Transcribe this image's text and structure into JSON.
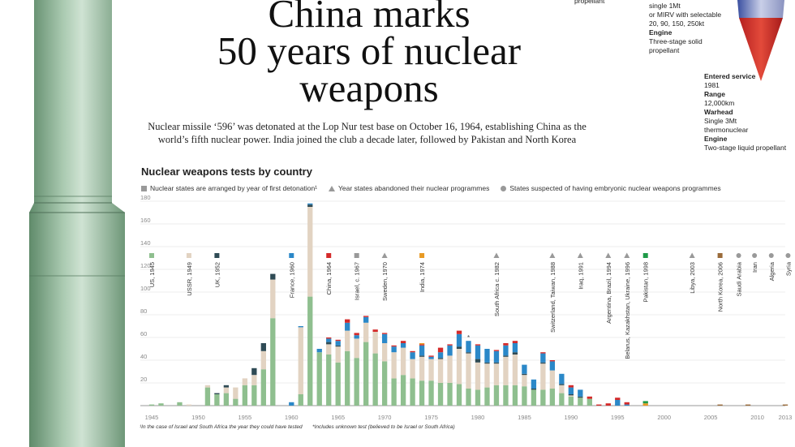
{
  "title_line1": "China marks",
  "title_line2": "50 years of nuclear",
  "title_line3": "weapons",
  "subtitle": "Nuclear missile ‘596’ was detonated at the Lop Nur test base on October 16, 1964, establishing China as the world’s fifth nuclear power. India joined the club a decade later, followed by Pakistan and North Korea",
  "spec_left": {
    "lines": [
      "propellant"
    ]
  },
  "spec_mid": {
    "lines": [
      {
        "t": "single 1Mt",
        "b": false
      },
      {
        "t": "or MIRV with selectable",
        "b": false
      },
      {
        "t": "20, 90, 150, 250kt",
        "b": false
      },
      {
        "t": "Engine",
        "b": true
      },
      {
        "t": "Three-stage solid",
        "b": false
      },
      {
        "t": "propellant",
        "b": false
      }
    ]
  },
  "spec_right": {
    "lines": [
      {
        "t": "Entered service",
        "b": true
      },
      {
        "t": "1981",
        "b": false
      },
      {
        "t": "Range",
        "b": true
      },
      {
        "t": "12,000km",
        "b": false
      },
      {
        "t": "Warhead",
        "b": true
      },
      {
        "t": "Single 3Mt",
        "b": false
      },
      {
        "t": "thermonuclear",
        "b": false
      },
      {
        "t": "Engine",
        "b": true
      },
      {
        "t": "Two-stage liquid propellant",
        "b": false
      }
    ]
  },
  "chart_title": "Nuclear weapons tests by country",
  "legend": {
    "states": "Nuclear states are arranged by year of first detonation¹",
    "abandoned": "Year states abandoned their nuclear programmes",
    "suspected": "States suspected of having embryonic nuclear weapons programmes"
  },
  "footnote1": "¹In the case of Israel and South Africa the year they could have tested",
  "footnote2": "*Includes unknown test (believed to be Israel or South Africa)",
  "colors": {
    "us": "#8fbf8f",
    "ussr": "#e2d3c2",
    "uk": "#2f4b55",
    "france": "#2b88c8",
    "china": "#d42a2a",
    "india": "#e89a24",
    "pakistan": "#1f9a48",
    "nk": "#9a6b3a",
    "marker_gray": "#999999",
    "grid": "#e6e6e6"
  },
  "chart_data": {
    "type": "bar",
    "stacked": true,
    "title": "Nuclear weapons tests by country",
    "ylim": [
      0,
      180
    ],
    "yticks": [
      20,
      40,
      60,
      80,
      100,
      120,
      140,
      160,
      180
    ],
    "xticks": [
      1945,
      1950,
      1955,
      1960,
      1965,
      1970,
      1975,
      1980,
      1985,
      1990,
      1995,
      2000,
      2005,
      2010,
      2013
    ],
    "xrange": [
      1945,
      2013
    ],
    "grid": true,
    "series": [
      {
        "name": "US",
        "color": "#8fbf8f",
        "values": {
          "1945": 1,
          "1946": 2,
          "1948": 3,
          "1951": 16,
          "1952": 10,
          "1953": 11,
          "1954": 6,
          "1955": 18,
          "1956": 18,
          "1957": 32,
          "1958": 77,
          "1961": 10,
          "1962": 96,
          "1963": 47,
          "1964": 45,
          "1965": 38,
          "1966": 48,
          "1967": 42,
          "1968": 56,
          "1969": 46,
          "1970": 39,
          "1971": 24,
          "1972": 27,
          "1973": 24,
          "1974": 22,
          "1975": 22,
          "1976": 20,
          "1977": 20,
          "1978": 19,
          "1979": 15,
          "1980": 14,
          "1981": 16,
          "1982": 18,
          "1983": 18,
          "1984": 18,
          "1985": 17,
          "1986": 14,
          "1987": 14,
          "1988": 15,
          "1989": 11,
          "1990": 8,
          "1991": 7,
          "1992": 6
        }
      },
      {
        "name": "USSR",
        "color": "#e2d3c2",
        "values": {
          "1949": 1,
          "1951": 2,
          "1953": 5,
          "1954": 10,
          "1955": 6,
          "1956": 9,
          "1957": 16,
          "1958": 34,
          "1961": 59,
          "1962": 79,
          "1964": 9,
          "1965": 14,
          "1966": 18,
          "1967": 17,
          "1968": 17,
          "1969": 19,
          "1970": 16,
          "1971": 23,
          "1972": 24,
          "1973": 17,
          "1974": 21,
          "1975": 19,
          "1976": 21,
          "1977": 24,
          "1978": 31,
          "1979": 31,
          "1980": 24,
          "1981": 21,
          "1982": 19,
          "1983": 25,
          "1984": 27,
          "1985": 10,
          "1987": 23,
          "1988": 16,
          "1989": 7,
          "1990": 1
        }
      },
      {
        "name": "UK",
        "color": "#2f4b55",
        "values": {
          "1952": 1,
          "1953": 2,
          "1956": 6,
          "1957": 7,
          "1958": 5,
          "1962": 2,
          "1964": 2,
          "1965": 1,
          "1966": 0,
          "1969": 0,
          "1970": 0,
          "1971": 0,
          "1972": 0,
          "1974": 1,
          "1976": 1,
          "1977": 0,
          "1978": 2,
          "1979": 1,
          "1980": 3,
          "1981": 1,
          "1982": 1,
          "1983": 1,
          "1984": 2,
          "1985": 1,
          "1986": 1,
          "1987": 1,
          "1988": 0,
          "1989": 1,
          "1990": 1,
          "1991": 1
        }
      },
      {
        "name": "France",
        "color": "#2b88c8",
        "values": {
          "1960": 3,
          "1961": 1,
          "1962": 1,
          "1963": 3,
          "1964": 3,
          "1965": 4,
          "1966": 7,
          "1967": 3,
          "1968": 5,
          "1969": 0,
          "1970": 8,
          "1971": 5,
          "1972": 4,
          "1973": 6,
          "1974": 9,
          "1975": 2,
          "1976": 5,
          "1977": 9,
          "1978": 11,
          "1979": 10,
          "1980": 12,
          "1981": 12,
          "1982": 10,
          "1983": 9,
          "1984": 8,
          "1985": 8,
          "1986": 8,
          "1987": 8,
          "1988": 8,
          "1989": 9,
          "1990": 6,
          "1991": 6,
          "1995": 5,
          "1996": 1
        }
      },
      {
        "name": "China",
        "color": "#d42a2a",
        "values": {
          "1964": 1,
          "1965": 1,
          "1966": 3,
          "1967": 2,
          "1968": 1,
          "1969": 2,
          "1970": 1,
          "1971": 1,
          "1972": 2,
          "1973": 1,
          "1974": 1,
          "1975": 1,
          "1976": 4,
          "1977": 1,
          "1978": 3,
          "1980": 1,
          "1982": 1,
          "1983": 2,
          "1984": 2,
          "1987": 1,
          "1988": 1,
          "1990": 2,
          "1992": 2,
          "1993": 1,
          "1994": 2,
          "1995": 2,
          "1996": 2
        }
      },
      {
        "name": "India",
        "color": "#e89a24",
        "values": {
          "1974": 1,
          "1998": 2
        }
      },
      {
        "name": "Pakistan",
        "color": "#1f9a48",
        "values": {
          "1998": 2
        }
      },
      {
        "name": "North Korea",
        "color": "#9a6b3a",
        "values": {
          "2006": 1,
          "2009": 1,
          "2013": 1
        }
      }
    ],
    "annotations": [
      {
        "label": "US, 1945",
        "year": 1945,
        "marker": "square",
        "color": "#8fbf8f"
      },
      {
        "label": "USSR, 1949",
        "year": 1949,
        "marker": "square",
        "color": "#e2d3c2"
      },
      {
        "label": "UK, 1952",
        "year": 1952,
        "marker": "square",
        "color": "#2f4b55"
      },
      {
        "label": "France, 1960",
        "year": 1960,
        "marker": "square",
        "color": "#2b88c8"
      },
      {
        "label": "China, 1964",
        "year": 1964,
        "marker": "square",
        "color": "#d42a2a"
      },
      {
        "label": "Israel, c. 1967",
        "year": 1967,
        "marker": "square",
        "color": "#999999"
      },
      {
        "label": "Sweden, 1970",
        "year": 1970,
        "marker": "triangle",
        "color": "#999999"
      },
      {
        "label": "India, 1974",
        "year": 1974,
        "marker": "square",
        "color": "#e89a24"
      },
      {
        "label": "South Africa c. 1982",
        "year": 1982,
        "marker": "triangle",
        "color": "#999999"
      },
      {
        "label": "Switzerland, Taiwan, 1988",
        "year": 1988,
        "marker": "triangle",
        "color": "#999999"
      },
      {
        "label": "Iraq, 1991",
        "year": 1991,
        "marker": "triangle",
        "color": "#999999"
      },
      {
        "label": "Argentina, Brazil, 1994",
        "year": 1994,
        "marker": "triangle",
        "color": "#999999"
      },
      {
        "label": "Belarus, Kazakhstan, Ukraine, 1996",
        "year": 1996,
        "marker": "triangle",
        "color": "#999999"
      },
      {
        "label": "Pakistan, 1998",
        "year": 1998,
        "marker": "square",
        "color": "#1f9a48"
      },
      {
        "label": "Libya, 2003",
        "year": 2003,
        "marker": "triangle",
        "color": "#999999"
      },
      {
        "label": "North Korea, 2006",
        "year": 2006,
        "marker": "square",
        "color": "#9a6b3a"
      },
      {
        "label": "Saudi Arabia",
        "year": 2008,
        "marker": "circle",
        "color": "#999999"
      },
      {
        "label": "Iran",
        "year": 2009.7,
        "marker": "circle",
        "color": "#999999"
      },
      {
        "label": "Algeria",
        "year": 2011.5,
        "marker": "circle",
        "color": "#999999"
      },
      {
        "label": "Syria",
        "year": 2013.3,
        "marker": "circle",
        "color": "#999999"
      }
    ],
    "asterisk_year": 1979
  }
}
